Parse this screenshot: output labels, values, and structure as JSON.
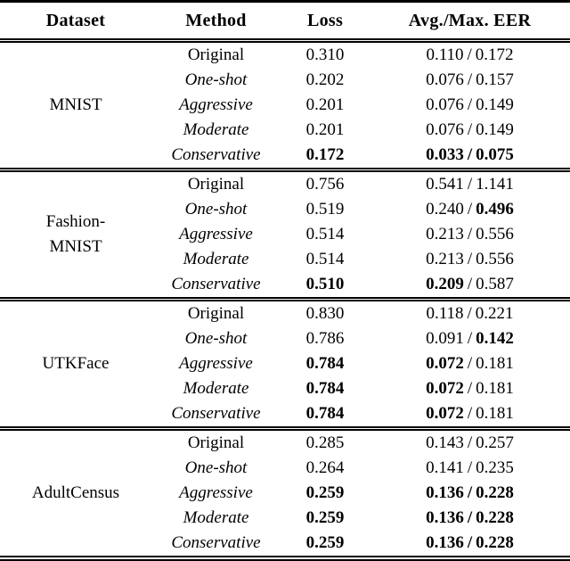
{
  "table": {
    "headers": {
      "dataset": "Dataset",
      "method": "Method",
      "loss": "Loss",
      "eer": "Avg./Max. EER"
    },
    "slash": "/",
    "groups": [
      {
        "dataset": "MNIST",
        "rows": [
          {
            "method": "Original",
            "italic": false,
            "loss": "0.310",
            "loss_bold": false,
            "avg": "0.110",
            "avg_bold": false,
            "slash_bold": false,
            "max": "0.172",
            "max_bold": false
          },
          {
            "method": "One-shot",
            "italic": true,
            "loss": "0.202",
            "loss_bold": false,
            "avg": "0.076",
            "avg_bold": false,
            "slash_bold": false,
            "max": "0.157",
            "max_bold": false
          },
          {
            "method": "Aggressive",
            "italic": true,
            "loss": "0.201",
            "loss_bold": false,
            "avg": "0.076",
            "avg_bold": false,
            "slash_bold": false,
            "max": "0.149",
            "max_bold": false
          },
          {
            "method": "Moderate",
            "italic": true,
            "loss": "0.201",
            "loss_bold": false,
            "avg": "0.076",
            "avg_bold": false,
            "slash_bold": false,
            "max": "0.149",
            "max_bold": false
          },
          {
            "method": "Conservative",
            "italic": true,
            "loss": "0.172",
            "loss_bold": true,
            "avg": "0.033",
            "avg_bold": true,
            "slash_bold": true,
            "max": "0.075",
            "max_bold": true
          }
        ]
      },
      {
        "dataset": "Fashion-\nMNIST",
        "rows": [
          {
            "method": "Original",
            "italic": false,
            "loss": "0.756",
            "loss_bold": false,
            "avg": "0.541",
            "avg_bold": false,
            "slash_bold": false,
            "max": "1.141",
            "max_bold": false
          },
          {
            "method": "One-shot",
            "italic": true,
            "loss": "0.519",
            "loss_bold": false,
            "avg": "0.240",
            "avg_bold": false,
            "slash_bold": false,
            "max": "0.496",
            "max_bold": true
          },
          {
            "method": "Aggressive",
            "italic": true,
            "loss": "0.514",
            "loss_bold": false,
            "avg": "0.213",
            "avg_bold": false,
            "slash_bold": false,
            "max": "0.556",
            "max_bold": false
          },
          {
            "method": "Moderate",
            "italic": true,
            "loss": "0.514",
            "loss_bold": false,
            "avg": "0.213",
            "avg_bold": false,
            "slash_bold": false,
            "max": "0.556",
            "max_bold": false
          },
          {
            "method": "Conservative",
            "italic": true,
            "loss": "0.510",
            "loss_bold": true,
            "avg": "0.209",
            "avg_bold": true,
            "slash_bold": false,
            "max": "0.587",
            "max_bold": false
          }
        ]
      },
      {
        "dataset": "UTKFace",
        "rows": [
          {
            "method": "Original",
            "italic": false,
            "loss": "0.830",
            "loss_bold": false,
            "avg": "0.118",
            "avg_bold": false,
            "slash_bold": false,
            "max": "0.221",
            "max_bold": false
          },
          {
            "method": "One-shot",
            "italic": true,
            "loss": "0.786",
            "loss_bold": false,
            "avg": "0.091",
            "avg_bold": false,
            "slash_bold": false,
            "max": "0.142",
            "max_bold": true
          },
          {
            "method": "Aggressive",
            "italic": true,
            "loss": "0.784",
            "loss_bold": true,
            "avg": "0.072",
            "avg_bold": true,
            "slash_bold": false,
            "max": "0.181",
            "max_bold": false
          },
          {
            "method": "Moderate",
            "italic": true,
            "loss": "0.784",
            "loss_bold": true,
            "avg": "0.072",
            "avg_bold": true,
            "slash_bold": false,
            "max": "0.181",
            "max_bold": false
          },
          {
            "method": "Conservative",
            "italic": true,
            "loss": "0.784",
            "loss_bold": true,
            "avg": "0.072",
            "avg_bold": true,
            "slash_bold": false,
            "max": "0.181",
            "max_bold": false
          }
        ]
      },
      {
        "dataset": "AdultCensus",
        "rows": [
          {
            "method": "Original",
            "italic": false,
            "loss": "0.285",
            "loss_bold": false,
            "avg": "0.143",
            "avg_bold": false,
            "slash_bold": false,
            "max": "0.257",
            "max_bold": false
          },
          {
            "method": "One-shot",
            "italic": true,
            "loss": "0.264",
            "loss_bold": false,
            "avg": "0.141",
            "avg_bold": false,
            "slash_bold": false,
            "max": "0.235",
            "max_bold": false
          },
          {
            "method": "Aggressive",
            "italic": true,
            "loss": "0.259",
            "loss_bold": true,
            "avg": "0.136",
            "avg_bold": true,
            "slash_bold": true,
            "max": "0.228",
            "max_bold": true
          },
          {
            "method": "Moderate",
            "italic": true,
            "loss": "0.259",
            "loss_bold": true,
            "avg": "0.136",
            "avg_bold": true,
            "slash_bold": true,
            "max": "0.228",
            "max_bold": true
          },
          {
            "method": "Conservative",
            "italic": true,
            "loss": "0.259",
            "loss_bold": true,
            "avg": "0.136",
            "avg_bold": true,
            "slash_bold": true,
            "max": "0.228",
            "max_bold": true
          }
        ]
      }
    ]
  }
}
